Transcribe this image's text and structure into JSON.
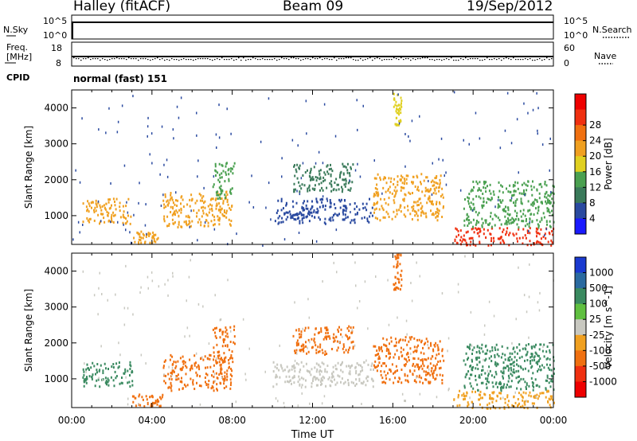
{
  "header": {
    "station": "Halley (fitACF)",
    "beam": "Beam 09",
    "date": "19/Sep/2012"
  },
  "top_panel": {
    "left_label": "N.Sky",
    "right_label": "N.Search",
    "ticks": [
      "10^5",
      "10^0"
    ]
  },
  "freq_panel": {
    "left_label_line1": "Freq.",
    "left_label_line2": "[MHz]",
    "right_label": "Nave",
    "left_ticks": [
      "18",
      "8"
    ],
    "right_ticks": [
      "60",
      "0"
    ]
  },
  "cpid": {
    "label": "CPID",
    "value": "normal (fast) 151"
  },
  "chart_data": [
    {
      "type": "heatmap",
      "title": "",
      "ylabel": "Slant Range [km]",
      "xlabel": "",
      "ylim": [
        200,
        4500
      ],
      "y_ticks": [
        "1000",
        "2000",
        "3000",
        "4000"
      ],
      "colorbar_label": "Power [dB]",
      "colorbar_ticks": [
        "4",
        "8",
        "12",
        "16",
        "20",
        "24",
        "28"
      ],
      "colorbar_colors": [
        "#1a1aff",
        "#2a4aa0",
        "#3a7a5a",
        "#4aa050",
        "#e0d020",
        "#f0a020",
        "#f07010",
        "#f03010",
        "#ee0000"
      ],
      "features": [
        {
          "x": [
            0.5,
            3.0
          ],
          "y": [
            800,
            1500
          ],
          "value": 22
        },
        {
          "x": [
            3.0,
            4.3
          ],
          "y": [
            250,
            600
          ],
          "value": 20
        },
        {
          "x": [
            4.5,
            8.0
          ],
          "y": [
            700,
            1700
          ],
          "value": 20
        },
        {
          "x": [
            7.0,
            8.1
          ],
          "y": [
            1500,
            2500
          ],
          "value": 14
        },
        {
          "x": [
            10.0,
            15.0
          ],
          "y": [
            800,
            1500
          ],
          "value": 6
        },
        {
          "x": [
            11.0,
            14.0
          ],
          "y": [
            1700,
            2500
          ],
          "value": 8
        },
        {
          "x": [
            15.0,
            18.5
          ],
          "y": [
            900,
            2200
          ],
          "value": 22
        },
        {
          "x": [
            16.0,
            16.4
          ],
          "y": [
            3500,
            4500
          ],
          "value": 18
        },
        {
          "x": [
            19.0,
            24.0
          ],
          "y": [
            200,
            700
          ],
          "value": 28
        },
        {
          "x": [
            19.5,
            24.0
          ],
          "y": [
            700,
            2000
          ],
          "value": 14
        }
      ]
    },
    {
      "type": "heatmap",
      "title": "",
      "ylabel": "Slant Range [km]",
      "xlabel": "Time UT",
      "ylim": [
        200,
        4500
      ],
      "y_ticks": [
        "1000",
        "2000",
        "3000",
        "4000"
      ],
      "x_ticks": [
        "00:00",
        "04:00",
        "08:00",
        "12:00",
        "16:00",
        "20:00",
        "00:00"
      ],
      "colorbar_label": "Velocity [m s^-1]",
      "colorbar_ticks": [
        "1000",
        "500",
        "100",
        "25",
        "-25",
        "-100",
        "-500",
        "-1000"
      ],
      "colorbar_colors": [
        "#1a3ad0",
        "#2a6aa0",
        "#3a8a60",
        "#60c040",
        "#c8c8c0",
        "#f0a020",
        "#f07010",
        "#f03010",
        "#ee0000"
      ],
      "features": [
        {
          "x": [
            0.5,
            3.0
          ],
          "y": [
            800,
            1500
          ],
          "value": 200
        },
        {
          "x": [
            3.0,
            4.5
          ],
          "y": [
            250,
            600
          ],
          "value": -150
        },
        {
          "x": [
            4.5,
            8.0
          ],
          "y": [
            700,
            1700
          ],
          "value": -300
        },
        {
          "x": [
            7.0,
            8.1
          ],
          "y": [
            1500,
            2500
          ],
          "value": -300
        },
        {
          "x": [
            10.0,
            15.0
          ],
          "y": [
            800,
            1500
          ],
          "value": 0
        },
        {
          "x": [
            11.0,
            14.0
          ],
          "y": [
            1700,
            2500
          ],
          "value": -300
        },
        {
          "x": [
            15.0,
            18.5
          ],
          "y": [
            900,
            2200
          ],
          "value": -300
        },
        {
          "x": [
            16.0,
            16.4
          ],
          "y": [
            3500,
            4500
          ],
          "value": -500
        },
        {
          "x": [
            19.0,
            24.0
          ],
          "y": [
            200,
            700
          ],
          "value": -80
        },
        {
          "x": [
            19.5,
            24.0
          ],
          "y": [
            700,
            2000
          ],
          "value": 150
        }
      ]
    }
  ]
}
